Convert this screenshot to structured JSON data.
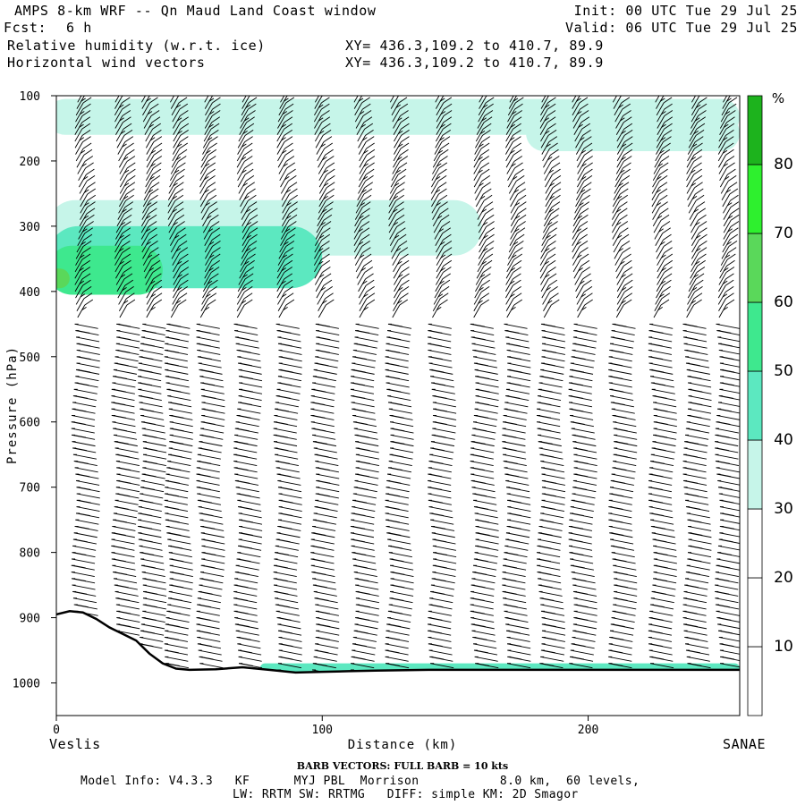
{
  "header": {
    "title": "AMPS 8-km WRF -- Qn Maud Land Coast window",
    "fcst_label": "Fcst:",
    "fcst_value": "6 h",
    "init": "Init: 00 UTC Tue 29 Jul 25",
    "valid": "Valid: 06 UTC Tue 29 Jul 25",
    "field1": "Relative humidity (w.r.t. ice)",
    "field2": "Horizontal wind vectors",
    "xy1": "XY= 436.3,109.2 to 410.7, 89.9",
    "xy2": "XY= 436.3,109.2 to 410.7, 89.9"
  },
  "colorbar": {
    "unit": "%",
    "labels": [
      "10",
      "20",
      "30",
      "40",
      "50",
      "60",
      "70",
      "80"
    ],
    "levels": [
      0,
      10,
      20,
      30,
      40,
      50,
      60,
      70,
      80,
      90
    ],
    "colors": [
      "#ffffff",
      "#ffffff",
      "#ffffff",
      "#c6f5e9",
      "#5ce8c0",
      "#3ee88e",
      "#5ad85a",
      "#2ef02e",
      "#1db31d"
    ]
  },
  "chart_data": {
    "type": "heatmap",
    "title": "Relative humidity (w.r.t. ice)",
    "xlabel": "Distance (km)",
    "ylabel": "Pressure (hPa)",
    "xlim": [
      0,
      257
    ],
    "ylim": [
      1050,
      100
    ],
    "x_ticks": [
      0,
      100,
      200
    ],
    "y_ticks": [
      100,
      200,
      300,
      400,
      500,
      600,
      700,
      800,
      900,
      1000
    ],
    "endpoint_left": "Veslis",
    "endpoint_right": "SANAE",
    "terrain_surface_hPa": [
      [
        0,
        895
      ],
      [
        5,
        890
      ],
      [
        10,
        892
      ],
      [
        15,
        902
      ],
      [
        20,
        915
      ],
      [
        25,
        925
      ],
      [
        30,
        935
      ],
      [
        35,
        955
      ],
      [
        40,
        970
      ],
      [
        45,
        978
      ],
      [
        50,
        980
      ],
      [
        60,
        979
      ],
      [
        70,
        976
      ],
      [
        80,
        980
      ],
      [
        90,
        984
      ],
      [
        100,
        983
      ],
      [
        110,
        982
      ],
      [
        120,
        981
      ],
      [
        140,
        980
      ],
      [
        160,
        980
      ],
      [
        180,
        980
      ],
      [
        200,
        980
      ],
      [
        220,
        980
      ],
      [
        240,
        980
      ],
      [
        257,
        980
      ]
    ],
    "rh_regions": [
      {
        "level": "30-40%",
        "x": [
          0,
          257
        ],
        "p": [
          105,
          160
        ],
        "note": "upper band"
      },
      {
        "level": "30-40%",
        "x": [
          180,
          257
        ],
        "p": [
          130,
          185
        ],
        "note": "upper band east"
      },
      {
        "level": "30-40%",
        "x": [
          0,
          160
        ],
        "p": [
          260,
          345
        ],
        "note": "mid band"
      },
      {
        "level": "40-50%",
        "x": [
          0,
          100
        ],
        "p": [
          300,
          395
        ],
        "note": "mid band core"
      },
      {
        "level": "50-60%",
        "x": [
          0,
          40
        ],
        "p": [
          330,
          405
        ],
        "note": "core"
      },
      {
        "level": "60-70%",
        "x": [
          0,
          5
        ],
        "p": [
          365,
          395
        ],
        "note": "peak"
      },
      {
        "level": "40-50%",
        "x": [
          80,
          257
        ],
        "p": [
          970,
          985
        ],
        "note": "surface layer"
      }
    ],
    "wind_barbs": {
      "column_x_km": [
        8,
        23,
        33,
        43,
        55,
        69,
        84,
        98,
        113,
        126,
        142,
        158,
        170,
        183,
        195,
        210,
        225,
        238,
        250
      ],
      "level_spacing_hPa": 10
    }
  },
  "footer": {
    "barb_note": "BARB VECTORS:  FULL BARB = 10 kts",
    "model_info": "Model Info: V4.3.3   KF      MYJ PBL  Morrison           8.0 km,  60 levels,",
    "model_info2": "LW: RRTM SW: RRTMG   DIFF: simple KM: 2D Smagor"
  }
}
